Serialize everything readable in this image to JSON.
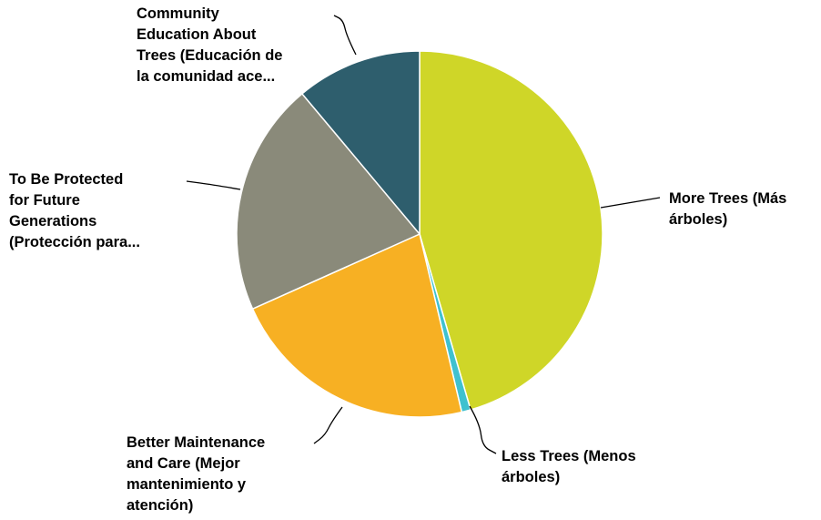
{
  "chart_data": {
    "type": "pie",
    "slices": [
      {
        "label_lines": [
          "More Trees (Más",
          "árboles)"
        ],
        "value": 45.5,
        "color": "#cfd628"
      },
      {
        "label_lines": [
          "Less Trees (Menos",
          "árboles)"
        ],
        "value": 0.8,
        "color": "#3fc1cf"
      },
      {
        "label_lines": [
          "Better Maintenance",
          "and Care (Mejor",
          "mantenimiento y",
          "atención)"
        ],
        "value": 22.0,
        "color": "#f7b023"
      },
      {
        "label_lines": [
          "To Be Protected",
          "for Future",
          "Generations",
          "(Protección para..."
        ],
        "value": 20.6,
        "color": "#8a8a7a"
      },
      {
        "label_lines": [
          "Community",
          "Education About",
          "Trees (Educación de",
          "la comunidad ace..."
        ],
        "value": 11.1,
        "color": "#2e5e6d"
      }
    ],
    "start_angle_deg": 0,
    "direction": "clockwise",
    "legend": "none",
    "data_labels": "category names outside with leader lines"
  }
}
